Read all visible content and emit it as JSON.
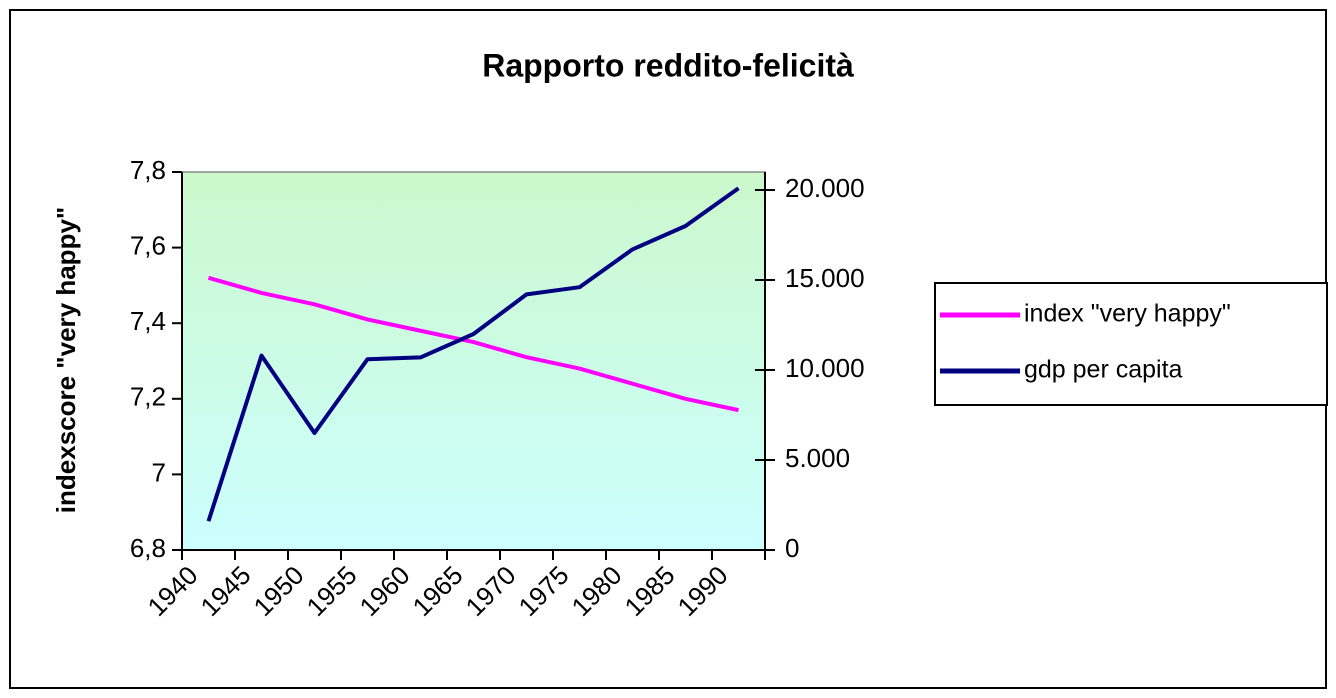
{
  "chart_data": {
    "type": "line",
    "title": "Rapporto reddito-felicità",
    "y_label": "indexscore \"very happy\"",
    "categories": [
      "1940",
      "1945",
      "1950",
      "1955",
      "1960",
      "1965",
      "1970",
      "1975",
      "1980",
      "1985",
      "1990"
    ],
    "series": [
      {
        "name": "index \"very happy\"",
        "color": "#ff00ff",
        "values": [
          7.52,
          7.48,
          7.45,
          7.41,
          7.38,
          7.35,
          7.31,
          7.28,
          7.24,
          7.2,
          7.17
        ]
      },
      {
        "name": "gdp per capita",
        "color": "#000080",
        "axis": "y2",
        "values": [
          1600,
          10800,
          6500,
          10600,
          10700,
          12000,
          14200,
          14600,
          16700,
          18000,
          20100
        ]
      }
    ],
    "ylim": [
      6.8,
      7.8
    ],
    "yticks": [
      {
        "value": 6.8,
        "label": "6,8"
      },
      7,
      {
        "value": 7.2,
        "label": "7,2"
      },
      {
        "value": 7.4,
        "label": "7,4"
      },
      {
        "value": 7.6,
        "label": "7,6"
      },
      {
        "value": 7.8,
        "label": "7,8"
      }
    ],
    "y2lim": [
      0,
      21000
    ],
    "y2ticks": [
      0,
      {
        "value": 5000,
        "label": "5.000"
      },
      {
        "value": 10000,
        "label": "10.000"
      },
      {
        "value": 15000,
        "label": "15.000"
      },
      {
        "value": 20000,
        "label": "20.000"
      }
    ],
    "legend": "right"
  }
}
